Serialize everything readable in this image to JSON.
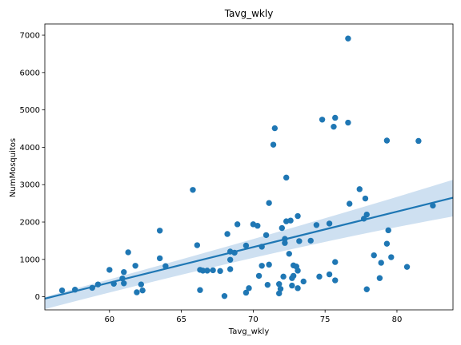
{
  "chart_data": {
    "type": "scatter",
    "title": "Tavg_wkly",
    "xlabel": "Tavg_wkly",
    "ylabel": "NumMosquitos",
    "xlim": [
      55.5,
      83.9
    ],
    "ylim": [
      -350,
      7300
    ],
    "xticks": [
      60,
      65,
      70,
      75,
      80
    ],
    "yticks": [
      0,
      1000,
      2000,
      3000,
      4000,
      5000,
      6000,
      7000
    ],
    "grid": false,
    "point_color": "#1f77b4",
    "regression": {
      "x": [
        55.5,
        83.9
      ],
      "y": [
        -50,
        2650
      ],
      "ci_upper": [
        -5,
        3130
      ],
      "ci_lower": [
        -330,
        2150
      ],
      "color": "#1f77b4",
      "ci_color": "#c6dbef"
    },
    "points": [
      [
        56.7,
        170
      ],
      [
        57.6,
        190
      ],
      [
        58.8,
        240
      ],
      [
        59.2,
        330
      ],
      [
        60.0,
        720
      ],
      [
        60.3,
        350
      ],
      [
        60.9,
        490
      ],
      [
        61.0,
        660
      ],
      [
        61.0,
        360
      ],
      [
        61.3,
        1190
      ],
      [
        61.8,
        830
      ],
      [
        61.9,
        120
      ],
      [
        62.2,
        330
      ],
      [
        62.3,
        170
      ],
      [
        63.5,
        1770
      ],
      [
        63.5,
        1030
      ],
      [
        63.9,
        820
      ],
      [
        65.8,
        2860
      ],
      [
        66.1,
        1380
      ],
      [
        66.3,
        720
      ],
      [
        66.3,
        180
      ],
      [
        66.5,
        700
      ],
      [
        66.8,
        700
      ],
      [
        67.2,
        710
      ],
      [
        67.7,
        690
      ],
      [
        68.0,
        20
      ],
      [
        68.2,
        1680
      ],
      [
        68.4,
        1210
      ],
      [
        68.4,
        990
      ],
      [
        68.4,
        740
      ],
      [
        68.7,
        1180
      ],
      [
        68.9,
        1940
      ],
      [
        69.5,
        1370
      ],
      [
        69.5,
        110
      ],
      [
        69.7,
        230
      ],
      [
        70.0,
        1940
      ],
      [
        70.3,
        1900
      ],
      [
        70.4,
        560
      ],
      [
        70.6,
        830
      ],
      [
        70.6,
        1340
      ],
      [
        70.9,
        1650
      ],
      [
        71.0,
        320
      ],
      [
        71.1,
        2510
      ],
      [
        71.1,
        860
      ],
      [
        71.4,
        4070
      ],
      [
        71.5,
        4510
      ],
      [
        71.8,
        90
      ],
      [
        71.8,
        340
      ],
      [
        71.9,
        210
      ],
      [
        72.0,
        1840
      ],
      [
        72.1,
        540
      ],
      [
        72.2,
        1440
      ],
      [
        72.2,
        1550
      ],
      [
        72.3,
        3190
      ],
      [
        72.3,
        2020
      ],
      [
        72.5,
        1150
      ],
      [
        72.6,
        2040
      ],
      [
        72.7,
        500
      ],
      [
        72.7,
        300
      ],
      [
        72.8,
        840
      ],
      [
        72.8,
        560
      ],
      [
        73.0,
        810
      ],
      [
        73.1,
        2160
      ],
      [
        73.1,
        700
      ],
      [
        73.1,
        230
      ],
      [
        73.2,
        1490
      ],
      [
        73.5,
        410
      ],
      [
        74.0,
        1500
      ],
      [
        74.4,
        1920
      ],
      [
        74.6,
        540
      ],
      [
        74.8,
        4740
      ],
      [
        75.3,
        1960
      ],
      [
        75.3,
        600
      ],
      [
        75.6,
        4550
      ],
      [
        75.7,
        930
      ],
      [
        75.7,
        440
      ],
      [
        75.7,
        4790
      ],
      [
        76.6,
        6910
      ],
      [
        76.6,
        4660
      ],
      [
        76.7,
        2490
      ],
      [
        77.4,
        2880
      ],
      [
        77.7,
        2090
      ],
      [
        77.8,
        2630
      ],
      [
        77.9,
        200
      ],
      [
        77.9,
        2200
      ],
      [
        78.4,
        1110
      ],
      [
        78.8,
        500
      ],
      [
        78.9,
        910
      ],
      [
        79.3,
        4180
      ],
      [
        79.3,
        1420
      ],
      [
        79.4,
        1780
      ],
      [
        79.6,
        1060
      ],
      [
        80.7,
        800
      ],
      [
        81.5,
        4170
      ],
      [
        82.5,
        2440
      ]
    ]
  }
}
